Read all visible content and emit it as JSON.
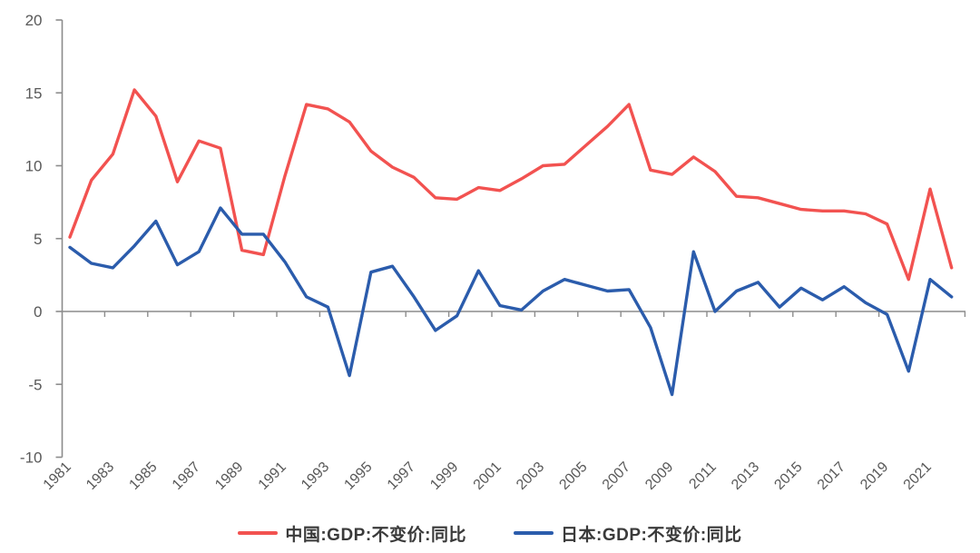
{
  "chart_data": {
    "type": "line",
    "title": "",
    "x_years": [
      1981,
      1982,
      1983,
      1984,
      1985,
      1986,
      1987,
      1988,
      1989,
      1990,
      1991,
      1992,
      1993,
      1994,
      1995,
      1996,
      1997,
      1998,
      1999,
      2000,
      2001,
      2002,
      2003,
      2004,
      2005,
      2006,
      2007,
      2008,
      2009,
      2010,
      2011,
      2012,
      2013,
      2014,
      2015,
      2016,
      2017,
      2018,
      2019,
      2020,
      2021,
      2022
    ],
    "x_tick_labels": [
      "1981",
      "1983",
      "1985",
      "1987",
      "1989",
      "1991",
      "1993",
      "1995",
      "1997",
      "1999",
      "2001",
      "2003",
      "2005",
      "2007",
      "2009",
      "2011",
      "2013",
      "2015",
      "2017",
      "2019",
      "2021"
    ],
    "y_ticks": [
      -10,
      -5,
      0,
      5,
      10,
      15,
      20
    ],
    "ylim": [
      -10,
      20
    ],
    "grid": "horizontal zero line only",
    "legend_position": "bottom-center",
    "series": [
      {
        "id": "china",
        "name": "中国:GDP:不变价:同比",
        "color": "#F25250",
        "values": [
          5.1,
          9.0,
          10.8,
          15.2,
          13.4,
          8.9,
          11.7,
          11.2,
          4.2,
          3.9,
          9.3,
          14.2,
          13.9,
          13.0,
          11.0,
          9.9,
          9.2,
          7.8,
          7.7,
          8.5,
          8.3,
          9.1,
          10.0,
          10.1,
          11.4,
          12.7,
          14.2,
          9.7,
          9.4,
          10.6,
          9.6,
          7.9,
          7.8,
          7.4,
          7.0,
          6.9,
          6.9,
          6.7,
          6.0,
          2.2,
          8.4,
          3.0
        ]
      },
      {
        "id": "japan",
        "name": "日本:GDP:不变价:同比",
        "color": "#2B5CAC",
        "values": [
          4.4,
          3.3,
          3.0,
          4.5,
          6.2,
          3.2,
          4.1,
          7.1,
          5.3,
          5.3,
          3.4,
          1.0,
          0.3,
          -4.4,
          2.7,
          3.1,
          1.0,
          -1.3,
          -0.3,
          2.8,
          0.4,
          0.1,
          1.4,
          2.2,
          1.8,
          1.4,
          1.5,
          -1.1,
          -5.7,
          4.1,
          0.0,
          1.4,
          2.0,
          0.3,
          1.6,
          0.8,
          1.7,
          0.6,
          -0.2,
          -4.1,
          2.2,
          1.0
        ]
      }
    ]
  },
  "colors": {
    "china_line": "#F25250",
    "japan_line": "#2B5CAC",
    "axis_line": "#8C8C8C",
    "zero_line": "#8C8C8C",
    "tick_label": "#595959",
    "legend_text": "#3A3A3A",
    "background": "#FFFFFF"
  }
}
